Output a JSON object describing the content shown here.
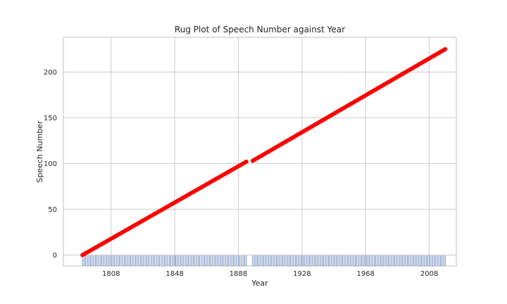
{
  "chart_data": {
    "type": "scatter",
    "title": "Rug Plot of Speech Number against Year",
    "xlabel": "Year",
    "ylabel": "Speech Number",
    "xlim": [
      1778,
      2025
    ],
    "ylim": [
      -12,
      238
    ],
    "xticks": [
      1808,
      1848,
      1888,
      1928,
      1968,
      2008
    ],
    "yticks": [
      0,
      50,
      100,
      150,
      200
    ],
    "grid": true,
    "legend": "none",
    "colors": {
      "points": "#ff0000",
      "rug": "#4c72b0",
      "grid": "#cccccc",
      "frame": "#bfbfbf"
    },
    "series": [
      {
        "range_start_year": 1790,
        "range_end_year": 1893,
        "range_start_number": 0,
        "range_end_number": 102
      },
      {
        "range_start_year": 1897,
        "range_end_year": 2018,
        "range_start_number": 103,
        "range_end_number": 225
      }
    ]
  }
}
